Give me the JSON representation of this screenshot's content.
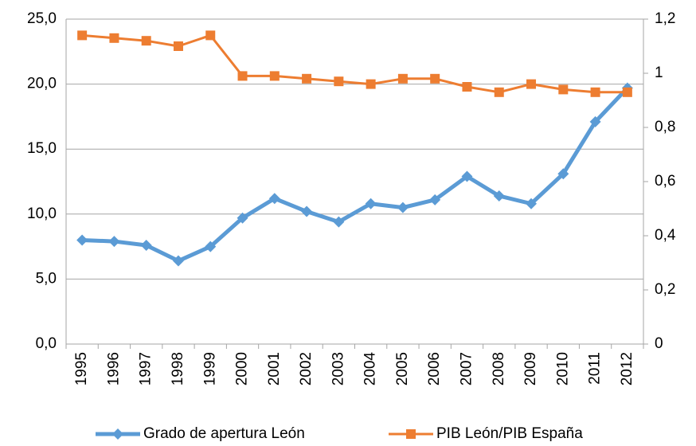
{
  "chart_data": {
    "type": "line",
    "categories": [
      "1995",
      "1996",
      "1997",
      "1998",
      "1999",
      "2000",
      "2001",
      "2002",
      "2003",
      "2004",
      "2005",
      "2006",
      "2007",
      "2008",
      "2009",
      "2010",
      "2011",
      "2012"
    ],
    "series": [
      {
        "name": "Grado de apertura León",
        "color": "#5b9bd5",
        "marker": "diamond",
        "values": [
          8.0,
          7.9,
          7.6,
          6.4,
          7.5,
          9.7,
          11.2,
          10.2,
          9.4,
          10.8,
          10.5,
          11.1,
          12.9,
          11.4,
          10.8,
          13.1,
          17.1,
          19.7
        ]
      },
      {
        "name": "PIB León/PIB España",
        "color": "#ed7d31",
        "marker": "square",
        "axis": "y2",
        "values": [
          1.14,
          1.13,
          1.12,
          1.1,
          1.14,
          0.99,
          0.99,
          0.98,
          0.97,
          0.96,
          0.98,
          0.98,
          0.95,
          0.93,
          0.96,
          0.94,
          0.93,
          0.93
        ]
      }
    ],
    "ylim": [
      0,
      25
    ],
    "yticks": [
      {
        "value": 0,
        "label": "0,0"
      },
      {
        "value": 5,
        "label": "5,0"
      },
      {
        "value": 10,
        "label": "10,0"
      },
      {
        "value": 15,
        "label": "15,0"
      },
      {
        "value": 20,
        "label": "20,0"
      },
      {
        "value": 25,
        "label": "25,0"
      }
    ],
    "y2lim": [
      0,
      1.2
    ],
    "y2ticks": [
      0,
      {
        "value": 0.2,
        "label": "0,2"
      },
      {
        "value": 0.4,
        "label": "0,4"
      },
      {
        "value": 0.6,
        "label": "0,6"
      },
      {
        "value": 0.8,
        "label": "0,8"
      },
      1,
      {
        "value": 1.2,
        "label": "1,2"
      }
    ],
    "grid": true,
    "legend": "bottom"
  }
}
